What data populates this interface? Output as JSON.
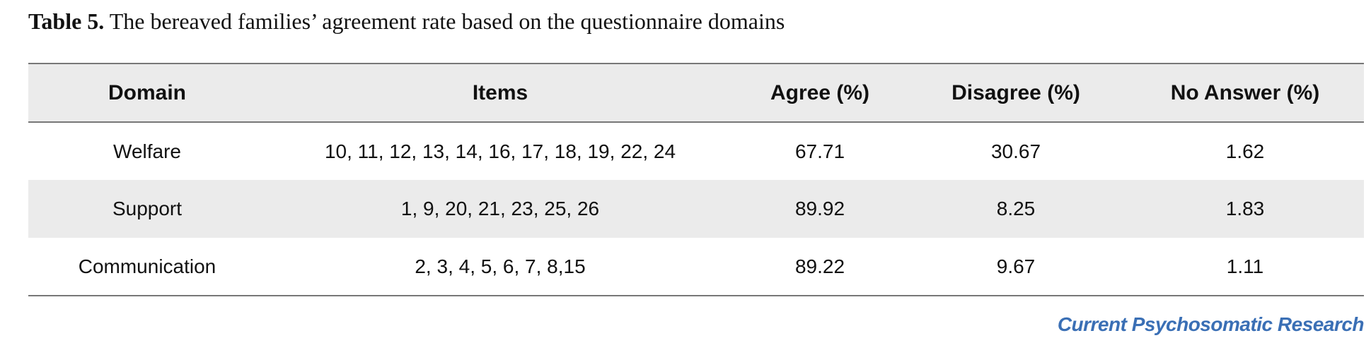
{
  "title": {
    "label": "Table 5.",
    "text": "The bereaved families’ agreement rate based on the questionnaire domains"
  },
  "table": {
    "header": [
      "Domain",
      "Items",
      "Agree (%)",
      "Disagree (%)",
      "No Answer (%)"
    ],
    "rows": [
      [
        "Welfare",
        "10, 11, 12, 13, 14, 16, 17, 18, 19, 22, 24",
        "67.71",
        "30.67",
        "1.62"
      ],
      [
        "Support",
        "1, 9, 20, 21, 23, 25, 26",
        "89.92",
        "8.25",
        "1.83"
      ],
      [
        "Communication",
        "2, 3, 4, 5, 6, 7, 8,15",
        "89.22",
        "9.67",
        "1.11"
      ]
    ]
  },
  "footer": "Current Psychosomatic Research"
}
